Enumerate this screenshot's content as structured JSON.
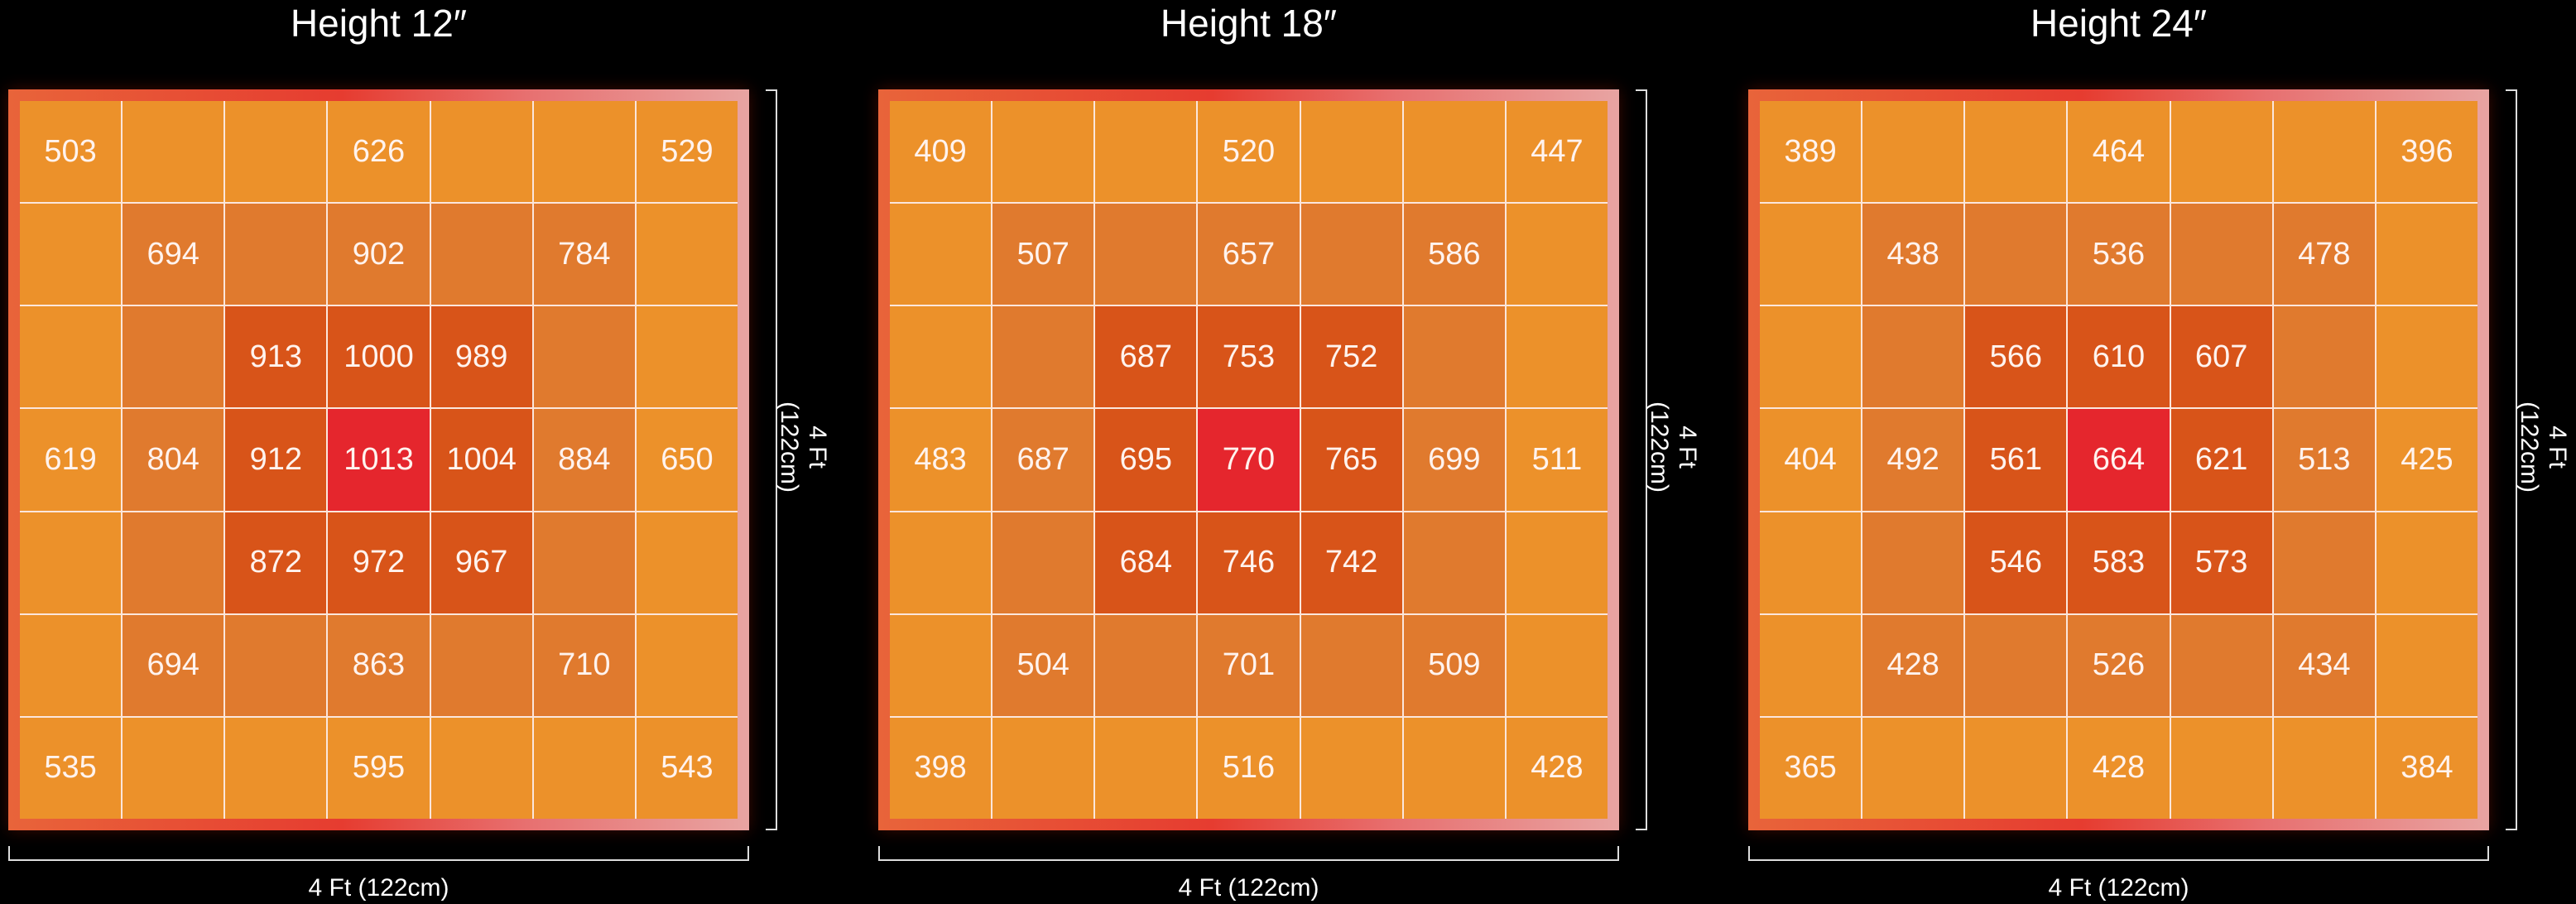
{
  "chart_data": [
    {
      "type": "heatmap",
      "title": "Height 12″",
      "xlabel": "4 Ft (122cm)",
      "ylabel": "4 Ft (122cm)",
      "values": [
        [
          503,
          null,
          null,
          626,
          null,
          null,
          529
        ],
        [
          null,
          694,
          null,
          902,
          null,
          784,
          null
        ],
        [
          null,
          null,
          913,
          1000,
          989,
          null,
          null
        ],
        [
          619,
          804,
          912,
          1013,
          1004,
          884,
          650
        ],
        [
          null,
          null,
          872,
          972,
          967,
          null,
          null
        ],
        [
          null,
          694,
          null,
          863,
          null,
          710,
          null
        ],
        [
          535,
          null,
          null,
          595,
          null,
          null,
          543
        ]
      ]
    },
    {
      "type": "heatmap",
      "title": "Height 18″",
      "xlabel": "4 Ft (122cm)",
      "ylabel": "4 Ft (122cm)",
      "values": [
        [
          409,
          null,
          null,
          520,
          null,
          null,
          447
        ],
        [
          null,
          507,
          null,
          657,
          null,
          586,
          null
        ],
        [
          null,
          null,
          687,
          753,
          752,
          null,
          null
        ],
        [
          483,
          687,
          695,
          770,
          765,
          699,
          511
        ],
        [
          null,
          null,
          684,
          746,
          742,
          null,
          null
        ],
        [
          null,
          504,
          null,
          701,
          null,
          509,
          null
        ],
        [
          398,
          null,
          null,
          516,
          null,
          null,
          428
        ]
      ]
    },
    {
      "type": "heatmap",
      "title": "Height 24″",
      "xlabel": "4 Ft (122cm)",
      "ylabel": "4 Ft (122cm)",
      "values": [
        [
          389,
          null,
          null,
          464,
          null,
          null,
          396
        ],
        [
          null,
          438,
          null,
          536,
          null,
          478,
          null
        ],
        [
          null,
          null,
          566,
          610,
          607,
          null,
          null
        ],
        [
          404,
          492,
          561,
          664,
          621,
          513,
          425
        ],
        [
          null,
          null,
          546,
          583,
          573,
          null,
          null
        ],
        [
          null,
          428,
          null,
          526,
          null,
          434,
          null
        ],
        [
          365,
          null,
          null,
          428,
          null,
          null,
          384
        ]
      ]
    }
  ],
  "colors": {
    "ring_outer": "#ec912a",
    "ring_2": "#e07a2e",
    "ring_1": "#d85419",
    "center": "#e5262d"
  }
}
